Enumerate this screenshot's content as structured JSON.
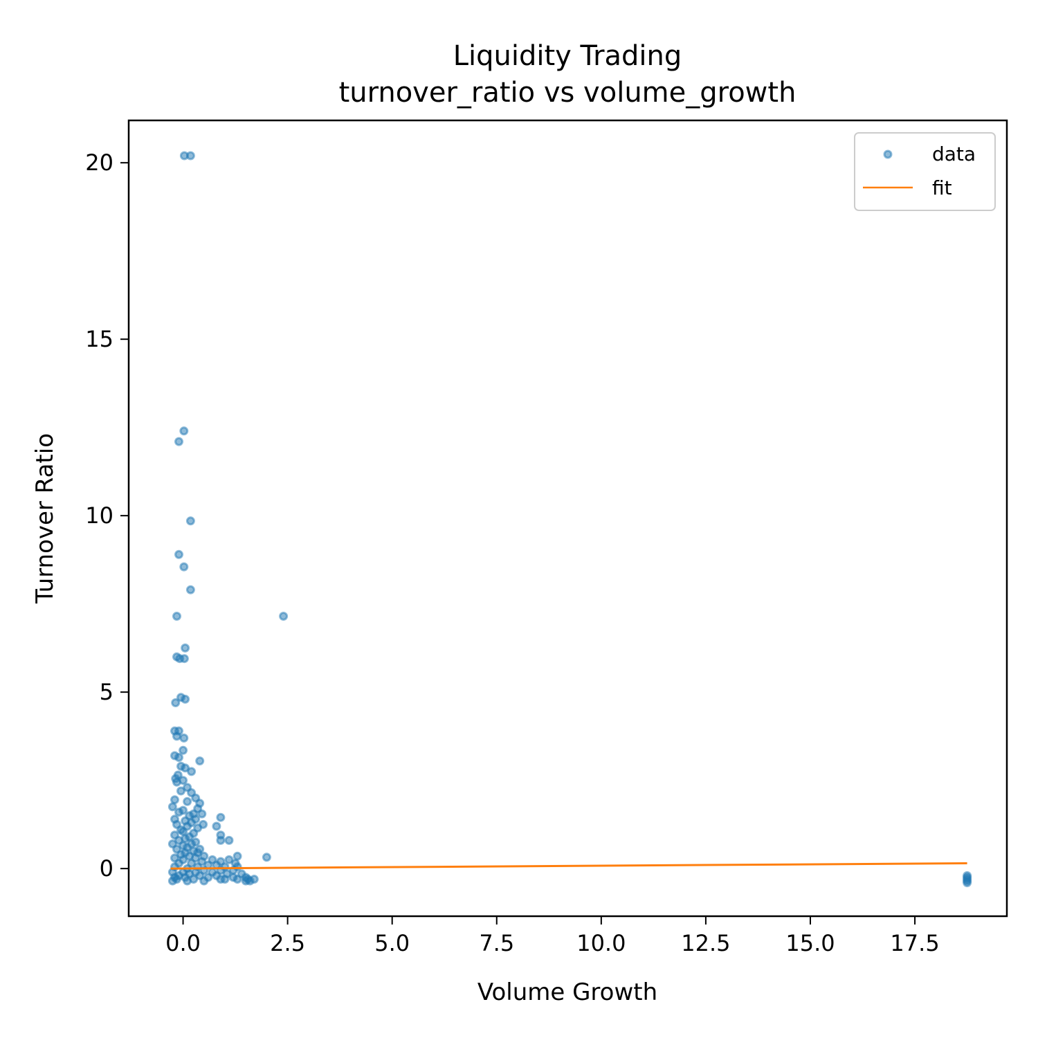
{
  "chart_data": {
    "type": "scatter",
    "title": "Liquidity Trading",
    "subtitle": "turnover_ratio vs volume_growth",
    "xlabel": "Volume Growth",
    "ylabel": "Turnover Ratio",
    "xlim": [
      -1.3,
      19.7
    ],
    "ylim": [
      -1.35,
      21.2
    ],
    "x_ticks": [
      0.0,
      2.5,
      5.0,
      7.5,
      10.0,
      12.5,
      15.0,
      17.5
    ],
    "x_tick_labels": [
      "0.0",
      "2.5",
      "5.0",
      "7.5",
      "10.0",
      "12.5",
      "15.0",
      "17.5"
    ],
    "y_ticks": [
      0,
      5,
      10,
      15,
      20
    ],
    "y_tick_labels": [
      "0",
      "5",
      "10",
      "15",
      "20"
    ],
    "grid": false,
    "legend": {
      "position": "top-right",
      "entries": [
        "data",
        "fit"
      ]
    },
    "colors": {
      "data": "#1f77b4",
      "fit": "#ff7f0e"
    },
    "series": [
      {
        "name": "data",
        "kind": "scatter",
        "points": [
          [
            0.03,
            20.2
          ],
          [
            0.18,
            20.2
          ],
          [
            0.02,
            12.4
          ],
          [
            -0.1,
            12.1
          ],
          [
            0.18,
            9.85
          ],
          [
            -0.1,
            8.9
          ],
          [
            0.02,
            8.55
          ],
          [
            0.18,
            7.9
          ],
          [
            -0.15,
            7.15
          ],
          [
            2.4,
            7.15
          ],
          [
            0.05,
            6.25
          ],
          [
            -0.15,
            6.0
          ],
          [
            -0.08,
            5.95
          ],
          [
            0.03,
            5.95
          ],
          [
            -0.05,
            4.85
          ],
          [
            0.05,
            4.8
          ],
          [
            -0.18,
            4.7
          ],
          [
            -0.2,
            3.9
          ],
          [
            -0.1,
            3.9
          ],
          [
            -0.15,
            3.75
          ],
          [
            0.02,
            3.7
          ],
          [
            0.0,
            3.35
          ],
          [
            -0.2,
            3.2
          ],
          [
            -0.1,
            3.15
          ],
          [
            0.4,
            3.05
          ],
          [
            -0.05,
            2.9
          ],
          [
            0.05,
            2.85
          ],
          [
            0.2,
            2.75
          ],
          [
            -0.12,
            2.65
          ],
          [
            -0.18,
            2.55
          ],
          [
            0.0,
            2.5
          ],
          [
            -0.15,
            2.45
          ],
          [
            0.1,
            2.3
          ],
          [
            -0.05,
            2.2
          ],
          [
            0.2,
            2.15
          ],
          [
            0.3,
            2.0
          ],
          [
            -0.2,
            1.95
          ],
          [
            0.1,
            1.9
          ],
          [
            0.4,
            1.85
          ],
          [
            -0.25,
            1.75
          ],
          [
            0.35,
            1.7
          ],
          [
            0.0,
            1.65
          ],
          [
            -0.1,
            1.6
          ],
          [
            0.25,
            1.55
          ],
          [
            0.45,
            1.55
          ],
          [
            0.15,
            1.5
          ],
          [
            0.9,
            1.45
          ],
          [
            -0.2,
            1.4
          ],
          [
            0.3,
            1.4
          ],
          [
            0.05,
            1.35
          ],
          [
            0.2,
            1.3
          ],
          [
            0.48,
            1.25
          ],
          [
            -0.15,
            1.25
          ],
          [
            0.8,
            1.2
          ],
          [
            0.1,
            1.2
          ],
          [
            0.35,
            1.15
          ],
          [
            -0.05,
            1.1
          ],
          [
            0.0,
            1.05
          ],
          [
            0.25,
            1.0
          ],
          [
            0.9,
            0.95
          ],
          [
            -0.2,
            0.95
          ],
          [
            0.15,
            0.9
          ],
          [
            0.05,
            0.85
          ],
          [
            1.1,
            0.8
          ],
          [
            0.9,
            0.8
          ],
          [
            -0.1,
            0.8
          ],
          [
            0.3,
            0.75
          ],
          [
            0.2,
            0.7
          ],
          [
            -0.25,
            0.7
          ],
          [
            0.0,
            0.65
          ],
          [
            0.1,
            0.6
          ],
          [
            0.4,
            0.55
          ],
          [
            -0.15,
            0.55
          ],
          [
            0.25,
            0.5
          ],
          [
            0.35,
            0.45
          ],
          [
            0.05,
            0.45
          ],
          [
            -0.05,
            0.4
          ],
          [
            1.3,
            0.35
          ],
          [
            0.5,
            0.35
          ],
          [
            0.15,
            0.35
          ],
          [
            2.0,
            0.32
          ],
          [
            -0.2,
            0.3
          ],
          [
            0.3,
            0.3
          ],
          [
            1.1,
            0.25
          ],
          [
            0.7,
            0.25
          ],
          [
            0.0,
            0.25
          ],
          [
            0.9,
            0.2
          ],
          [
            1.25,
            0.15
          ],
          [
            0.45,
            0.2
          ],
          [
            0.2,
            0.15
          ],
          [
            -0.1,
            0.15
          ],
          [
            0.6,
            0.1
          ],
          [
            0.8,
            0.1
          ],
          [
            1.0,
            0.05
          ],
          [
            1.3,
            0.05
          ],
          [
            0.35,
            0.05
          ],
          [
            -0.2,
            0.05
          ],
          [
            0.1,
            0.0
          ],
          [
            0.5,
            -0.05
          ],
          [
            0.9,
            -0.05
          ],
          [
            1.2,
            -0.05
          ],
          [
            -0.25,
            -0.1
          ],
          [
            0.0,
            -0.1
          ],
          [
            0.3,
            -0.1
          ],
          [
            0.7,
            -0.1
          ],
          [
            1.05,
            -0.15
          ],
          [
            1.4,
            -0.15
          ],
          [
            0.15,
            -0.15
          ],
          [
            -0.1,
            -0.2
          ],
          [
            0.4,
            -0.2
          ],
          [
            0.8,
            -0.2
          ],
          [
            1.2,
            -0.25
          ],
          [
            1.5,
            -0.25
          ],
          [
            -0.2,
            -0.25
          ],
          [
            0.05,
            -0.25
          ],
          [
            0.6,
            -0.25
          ],
          [
            1.0,
            -0.3
          ],
          [
            1.55,
            -0.3
          ],
          [
            1.7,
            -0.3
          ],
          [
            -0.15,
            -0.3
          ],
          [
            0.25,
            -0.3
          ],
          [
            1.3,
            -0.3
          ],
          [
            0.9,
            -0.3
          ],
          [
            1.5,
            -0.35
          ],
          [
            1.6,
            -0.35
          ],
          [
            -0.25,
            -0.35
          ],
          [
            0.1,
            -0.35
          ],
          [
            0.5,
            -0.35
          ],
          [
            18.75,
            -0.2
          ],
          [
            18.75,
            -0.25
          ],
          [
            18.75,
            -0.3
          ],
          [
            18.75,
            -0.35
          ],
          [
            18.75,
            -0.4
          ]
        ]
      },
      {
        "name": "fit",
        "kind": "line",
        "points": [
          [
            -0.3,
            0.0
          ],
          [
            18.75,
            0.15
          ]
        ]
      }
    ]
  }
}
